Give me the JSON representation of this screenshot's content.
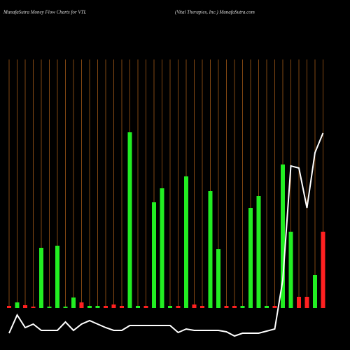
{
  "chart_data": {
    "type": "bar",
    "title": "MunafaSutra  Money Flow  Charts for VTL",
    "subtitle": "(Vital Therapies,  Inc.) MunafaSutra.com",
    "categories": [
      null,
      null,
      null,
      null,
      null,
      null,
      null,
      null,
      null,
      null,
      null,
      null,
      null,
      null,
      null,
      null,
      null,
      null,
      null,
      null,
      null,
      null,
      null,
      null,
      null,
      null,
      null,
      null,
      null,
      null,
      null,
      null,
      null,
      null,
      null,
      null,
      null,
      null,
      null,
      null
    ],
    "series": [
      {
        "values": [
          3,
          8,
          4,
          2,
          86,
          2,
          89,
          2,
          15,
          8,
          3,
          3,
          3,
          5,
          3,
          251,
          3,
          3,
          151,
          171,
          3,
          3,
          188,
          5,
          3,
          167,
          84,
          3,
          3,
          3,
          143,
          160,
          3,
          3,
          205,
          109,
          16,
          16,
          47,
          109
        ],
        "colors": [
          "#ff2020",
          "#22ee22",
          "#ff2020",
          "#ff2020",
          "#22ee22",
          "#22ee22",
          "#22ee22",
          "#22ee22",
          "#22ee22",
          "#ff2020",
          "#22ee22",
          "#22ee22",
          "#ff2020",
          "#ff2020",
          "#ff2020",
          "#22ee22",
          "#22ee22",
          "#ff2020",
          "#22ee22",
          "#22ee22",
          "#22ee22",
          "#ff2020",
          "#22ee22",
          "#ff2020",
          "#ff2020",
          "#22ee22",
          "#22ee22",
          "#ff2020",
          "#ff2020",
          "#22ee22",
          "#22ee22",
          "#22ee22",
          "#22ee22",
          "#ff2020",
          "#22ee22",
          "#22ee22",
          "#ff2020",
          "#ff2020",
          "#22ee22",
          "#ff2020"
        ]
      },
      {
        "type": "line",
        "axis": "y2",
        "color": "#ffffff",
        "values": [
          4,
          30,
          12,
          17,
          8,
          8,
          8,
          20,
          8,
          17,
          22,
          17,
          12,
          8,
          8,
          15,
          15,
          15,
          15,
          15,
          15,
          5,
          10,
          8,
          8,
          8,
          8,
          6,
          0,
          4,
          4,
          4,
          7,
          10,
          80,
          243,
          240,
          183,
          262,
          290
        ]
      }
    ],
    "ylim": [
      0,
      355
    ],
    "y2lim": [
      0,
      300
    ],
    "grid_color": "#b8651a"
  }
}
